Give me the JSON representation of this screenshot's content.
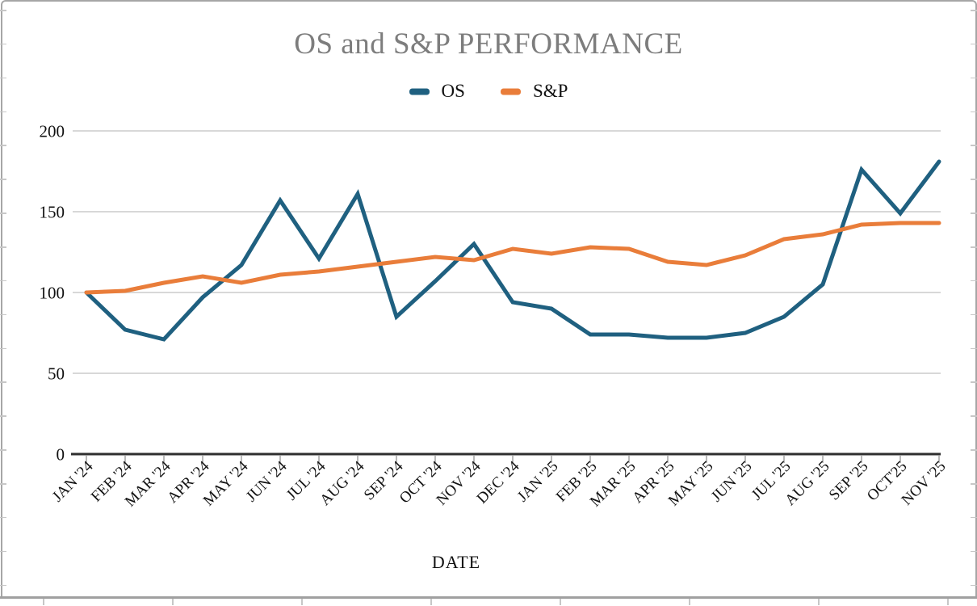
{
  "header": {
    "title": "OS and S&P PERFORMANCE"
  },
  "legend": [
    {
      "label": "OS",
      "color": "#1f6080"
    },
    {
      "label": "S&P",
      "color": "#e97d3a"
    }
  ],
  "axes": {
    "xlabel": "DATE"
  },
  "chart_data": {
    "type": "line",
    "title": "OS and S&P PERFORMANCE",
    "xlabel": "DATE",
    "ylabel": "",
    "ylim": [
      0,
      200
    ],
    "y_ticks": [
      0,
      50,
      100,
      150,
      200
    ],
    "grid": true,
    "legend_position": "top",
    "categories": [
      "JAN '24",
      "FEB '24",
      "MAR '24",
      "APR '24",
      "MAY '24",
      "JUN '24",
      "JUL '24",
      "AUG '24",
      "SEP '24",
      "OCT '24",
      "NOV '24",
      "DEC '24",
      "JAN '25",
      "FEB '25",
      "MAR '25",
      "APR '25",
      "MAY '25",
      "JUN '25",
      "JUL '25",
      "AUG '25",
      "SEP '25",
      "OCT'25",
      "NOV '25"
    ],
    "series": [
      {
        "name": "OS",
        "color": "#1f6080",
        "values": [
          100,
          77,
          71,
          97,
          117,
          157,
          121,
          161,
          85,
          107,
          130,
          94,
          90,
          74,
          74,
          72,
          72,
          75,
          85,
          105,
          176,
          149,
          181
        ]
      },
      {
        "name": "S&P",
        "color": "#e97d3a",
        "values": [
          100,
          101,
          106,
          110,
          106,
          111,
          113,
          116,
          119,
          122,
          120,
          127,
          124,
          128,
          127,
          119,
          117,
          123,
          133,
          136,
          142,
          143,
          143
        ]
      }
    ]
  }
}
